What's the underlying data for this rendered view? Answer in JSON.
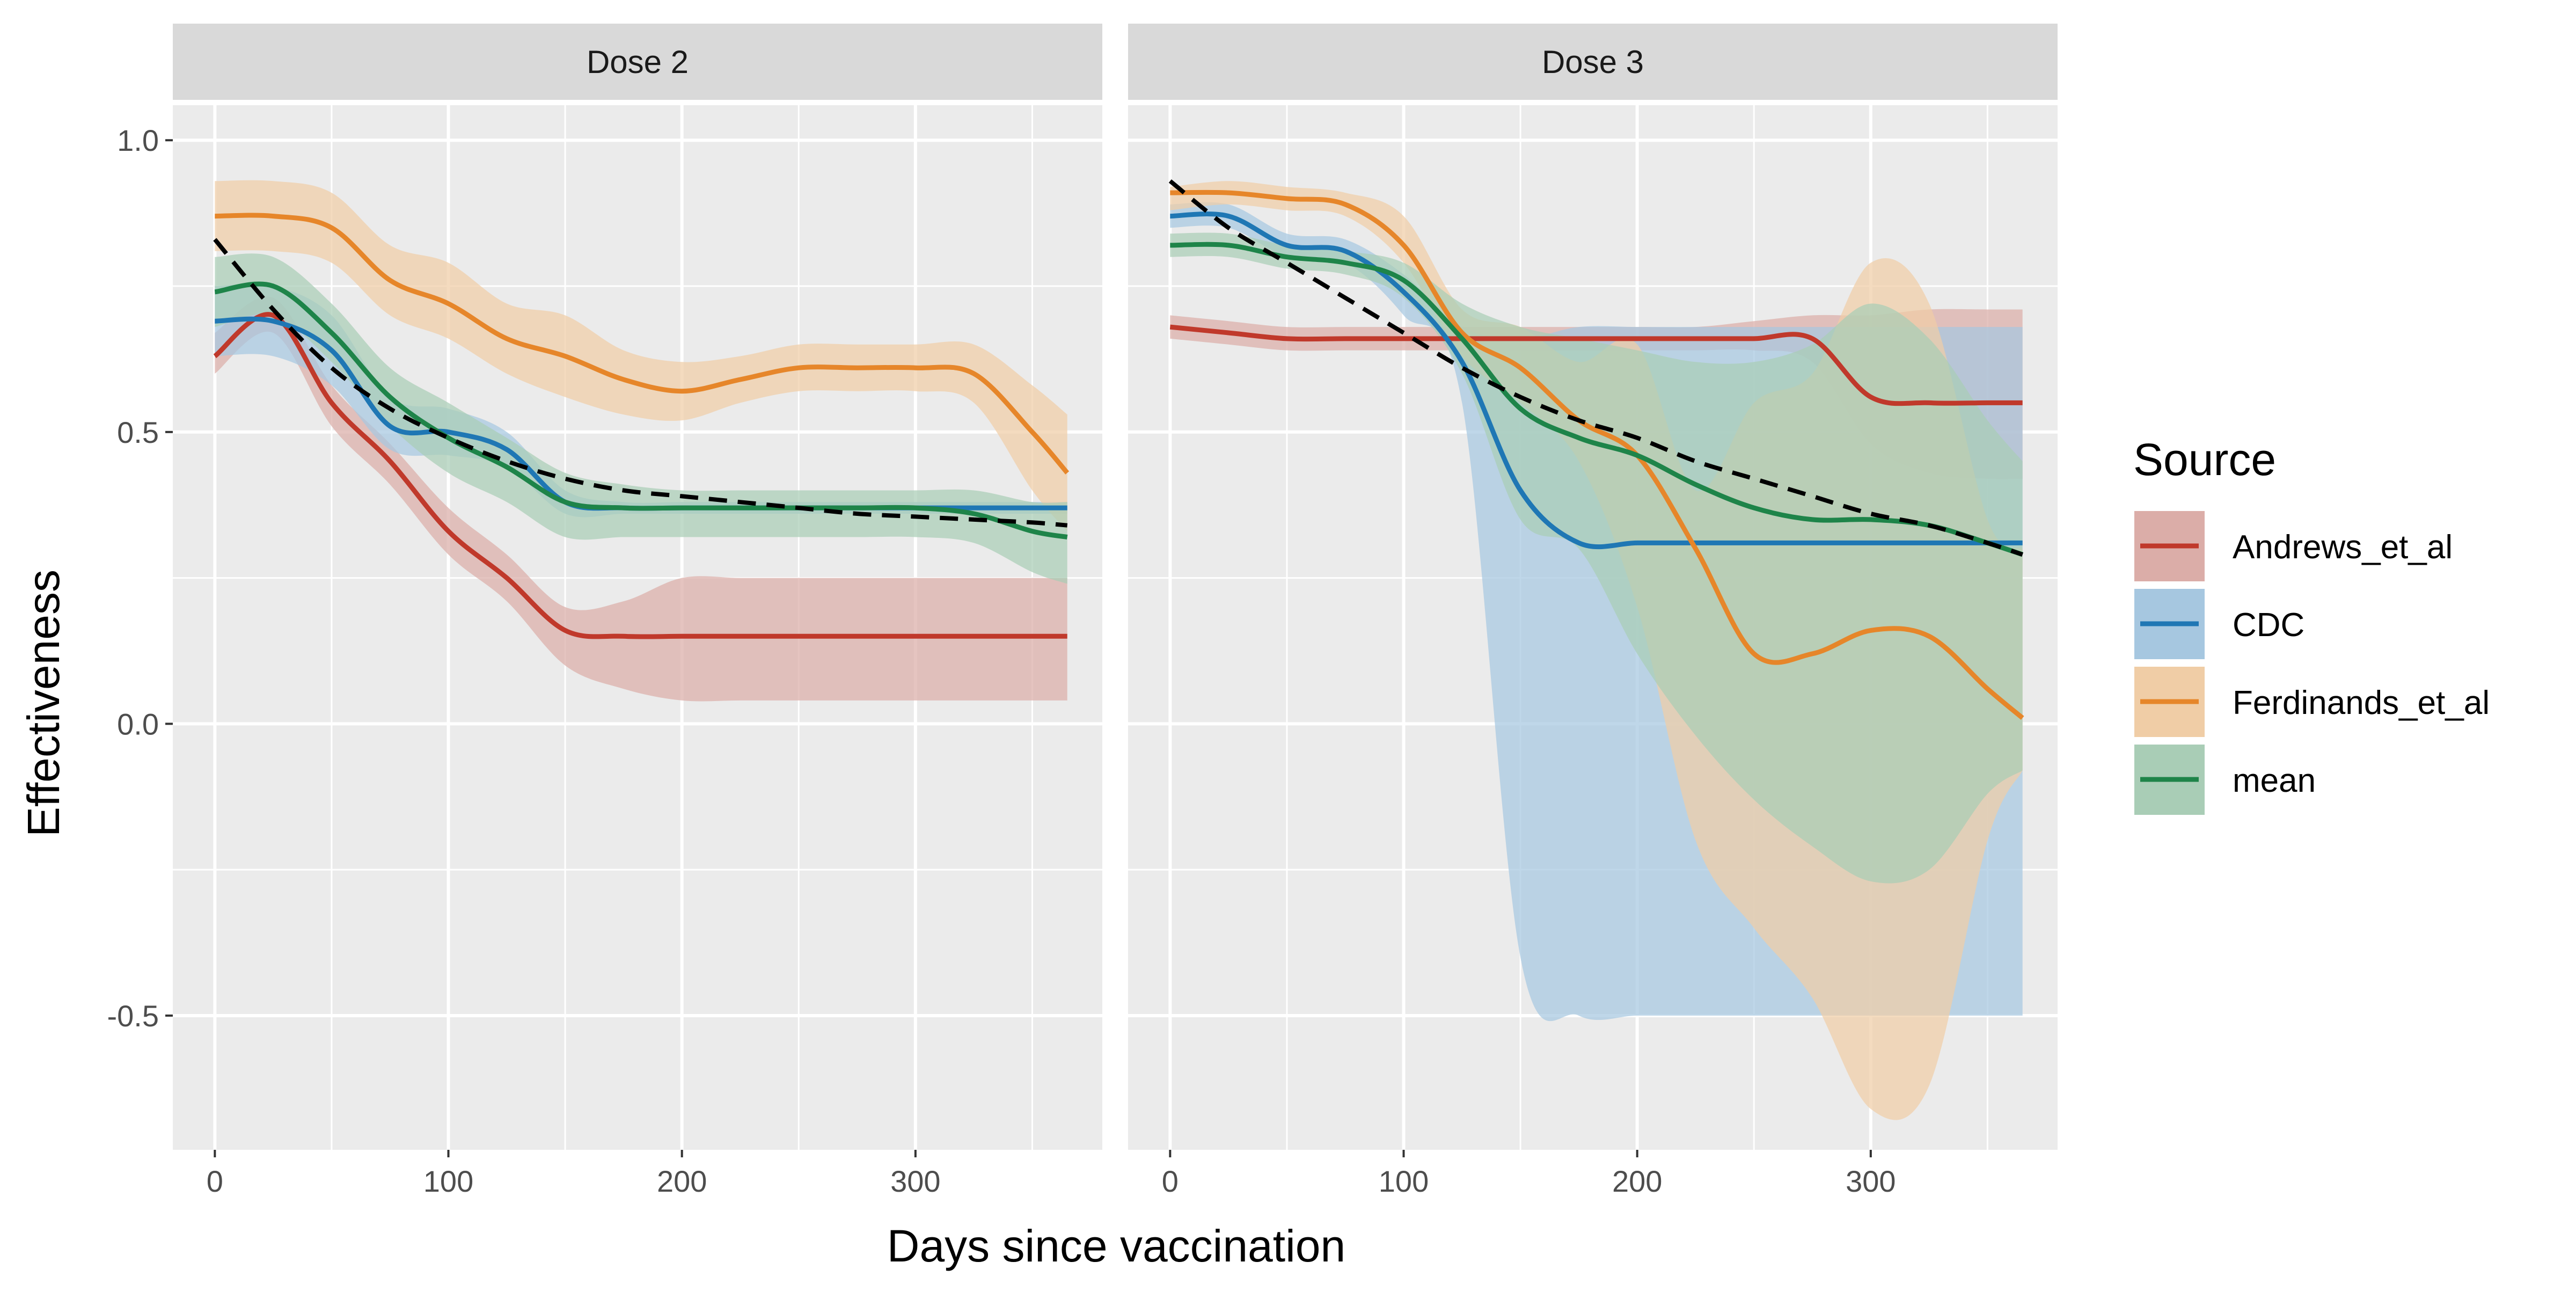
{
  "chart_data": {
    "type": "line",
    "x_title": "Days since vaccination",
    "y_title": "Effectiveness",
    "xlim": [
      -18,
      380
    ],
    "ylim": [
      -0.73,
      1.06
    ],
    "x_ticks": [
      0,
      100,
      200,
      300
    ],
    "x_tick_labels": [
      "0",
      "100",
      "200",
      "300"
    ],
    "y_ticks": [
      -0.5,
      0.0,
      0.5,
      1.0
    ],
    "y_tick_labels": [
      "-0.5",
      "0.0",
      "0.5",
      "1.0"
    ],
    "grid": true,
    "background": "#ebebeb",
    "legend": {
      "title": "Source",
      "position": "right",
      "entries": [
        {
          "label": "Andrews_et_al",
          "color": "#C0392B",
          "fill": "#DBADA8"
        },
        {
          "label": "CDC",
          "color": "#1F77B4",
          "fill": "#A6C7E0"
        },
        {
          "label": "Ferdinands_et_al",
          "color": "#E6862A",
          "fill": "#F0CDA6"
        },
        {
          "label": "mean",
          "color": "#1E8449",
          "fill": "#A9CDB6"
        }
      ]
    },
    "panels": [
      {
        "label": "Dose 2",
        "x": [
          0,
          25,
          50,
          75,
          100,
          125,
          150,
          175,
          200,
          225,
          250,
          275,
          300,
          325,
          350,
          365
        ],
        "series": [
          {
            "name": "Andrews_et_al",
            "values": [
              0.63,
              0.7,
              0.55,
              0.45,
              0.33,
              0.25,
              0.16,
              0.15,
              0.15,
              0.15,
              0.15,
              0.15,
              0.15,
              0.15,
              0.15,
              0.15
            ],
            "lower": [
              0.6,
              0.67,
              0.51,
              0.41,
              0.29,
              0.21,
              0.1,
              0.06,
              0.04,
              0.04,
              0.04,
              0.04,
              0.04,
              0.04,
              0.04,
              0.04
            ],
            "upper": [
              0.67,
              0.73,
              0.58,
              0.48,
              0.37,
              0.29,
              0.2,
              0.21,
              0.25,
              0.25,
              0.25,
              0.25,
              0.25,
              0.25,
              0.25,
              0.25
            ]
          },
          {
            "name": "CDC",
            "values": [
              0.69,
              0.69,
              0.64,
              0.51,
              0.5,
              0.47,
              0.38,
              0.37,
              0.37,
              0.37,
              0.37,
              0.37,
              0.37,
              0.37,
              0.37,
              0.37
            ],
            "lower": [
              0.63,
              0.63,
              0.58,
              0.47,
              0.46,
              0.44,
              0.36,
              0.36,
              0.36,
              0.36,
              0.36,
              0.36,
              0.36,
              0.36,
              0.36,
              0.36
            ],
            "upper": [
              0.75,
              0.75,
              0.7,
              0.56,
              0.54,
              0.5,
              0.4,
              0.38,
              0.38,
              0.38,
              0.38,
              0.38,
              0.38,
              0.38,
              0.38,
              0.38
            ]
          },
          {
            "name": "Ferdinands_et_al",
            "values": [
              0.87,
              0.87,
              0.85,
              0.76,
              0.72,
              0.66,
              0.63,
              0.59,
              0.57,
              0.59,
              0.61,
              0.61,
              0.61,
              0.6,
              0.5,
              0.43
            ],
            "lower": [
              0.81,
              0.81,
              0.79,
              0.7,
              0.66,
              0.6,
              0.56,
              0.53,
              0.52,
              0.55,
              0.57,
              0.57,
              0.57,
              0.55,
              0.4,
              0.33
            ],
            "upper": [
              0.93,
              0.93,
              0.91,
              0.82,
              0.79,
              0.72,
              0.7,
              0.64,
              0.62,
              0.63,
              0.65,
              0.65,
              0.65,
              0.65,
              0.58,
              0.53
            ]
          },
          {
            "name": "mean",
            "values": [
              0.74,
              0.75,
              0.67,
              0.56,
              0.49,
              0.44,
              0.38,
              0.37,
              0.37,
              0.37,
              0.37,
              0.37,
              0.37,
              0.36,
              0.33,
              0.32
            ],
            "lower": [
              0.68,
              0.7,
              0.62,
              0.51,
              0.43,
              0.38,
              0.32,
              0.32,
              0.32,
              0.32,
              0.32,
              0.32,
              0.32,
              0.31,
              0.26,
              0.24
            ],
            "upper": [
              0.8,
              0.8,
              0.72,
              0.61,
              0.55,
              0.49,
              0.43,
              0.41,
              0.4,
              0.4,
              0.4,
              0.4,
              0.4,
              0.4,
              0.38,
              0.38
            ]
          },
          {
            "name": "trend",
            "dashed": true,
            "color": "#000000",
            "values": [
              0.83,
              0.71,
              0.61,
              0.54,
              0.49,
              0.45,
              0.42,
              0.4,
              0.39,
              0.38,
              0.37,
              0.36,
              0.355,
              0.35,
              0.345,
              0.34
            ]
          }
        ]
      },
      {
        "label": "Dose 3",
        "x": [
          0,
          25,
          50,
          75,
          100,
          125,
          150,
          175,
          200,
          225,
          250,
          275,
          300,
          325,
          350,
          365
        ],
        "series": [
          {
            "name": "Andrews_et_al",
            "values": [
              0.68,
              0.67,
              0.66,
              0.66,
              0.66,
              0.66,
              0.66,
              0.66,
              0.66,
              0.66,
              0.66,
              0.66,
              0.56,
              0.55,
              0.55,
              0.55
            ],
            "lower": [
              0.66,
              0.65,
              0.64,
              0.64,
              0.64,
              0.64,
              0.64,
              0.64,
              0.64,
              0.64,
              0.64,
              0.62,
              0.48,
              0.43,
              0.42,
              0.42
            ],
            "upper": [
              0.7,
              0.69,
              0.68,
              0.68,
              0.68,
              0.68,
              0.68,
              0.68,
              0.68,
              0.68,
              0.69,
              0.7,
              0.7,
              0.71,
              0.71,
              0.71
            ]
          },
          {
            "name": "CDC",
            "values": [
              0.87,
              0.87,
              0.82,
              0.81,
              0.74,
              0.62,
              0.4,
              0.31,
              0.31,
              0.31,
              0.31,
              0.31,
              0.31,
              0.31,
              0.31,
              0.31
            ],
            "lower": [
              0.85,
              0.85,
              0.8,
              0.79,
              0.7,
              0.55,
              -0.4,
              -0.5,
              -0.5,
              -0.5,
              -0.5,
              -0.5,
              -0.5,
              -0.5,
              -0.5,
              -0.5
            ],
            "upper": [
              0.89,
              0.89,
              0.84,
              0.83,
              0.77,
              0.68,
              0.66,
              0.68,
              0.68,
              0.68,
              0.68,
              0.68,
              0.68,
              0.68,
              0.68,
              0.68
            ]
          },
          {
            "name": "Ferdinands_et_al",
            "values": [
              0.91,
              0.91,
              0.9,
              0.89,
              0.82,
              0.67,
              0.61,
              0.52,
              0.46,
              0.3,
              0.12,
              0.12,
              0.16,
              0.15,
              0.06,
              0.01
            ],
            "lower": [
              0.88,
              0.89,
              0.88,
              0.87,
              0.79,
              0.63,
              0.55,
              0.45,
              0.2,
              -0.2,
              -0.35,
              -0.47,
              -0.66,
              -0.62,
              -0.2,
              -0.08
            ],
            "upper": [
              0.92,
              0.93,
              0.92,
              0.91,
              0.87,
              0.71,
              0.68,
              0.62,
              0.65,
              0.4,
              0.55,
              0.6,
              0.79,
              0.72,
              0.35,
              0.3
            ]
          },
          {
            "name": "mean",
            "values": [
              0.82,
              0.82,
              0.8,
              0.79,
              0.76,
              0.66,
              0.54,
              0.49,
              0.46,
              0.41,
              0.37,
              0.35,
              0.35,
              0.34,
              0.31,
              0.29
            ],
            "lower": [
              0.8,
              0.8,
              0.78,
              0.77,
              0.73,
              0.6,
              0.35,
              0.3,
              0.12,
              -0.02,
              -0.13,
              -0.21,
              -0.27,
              -0.25,
              -0.12,
              -0.08
            ],
            "upper": [
              0.84,
              0.84,
              0.82,
              0.81,
              0.79,
              0.72,
              0.68,
              0.66,
              0.64,
              0.62,
              0.62,
              0.65,
              0.72,
              0.66,
              0.52,
              0.45
            ]
          },
          {
            "name": "trend",
            "dashed": true,
            "color": "#000000",
            "values": [
              0.93,
              0.85,
              0.79,
              0.73,
              0.67,
              0.61,
              0.56,
              0.52,
              0.49,
              0.45,
              0.42,
              0.39,
              0.36,
              0.34,
              0.31,
              0.29
            ]
          }
        ]
      }
    ]
  }
}
